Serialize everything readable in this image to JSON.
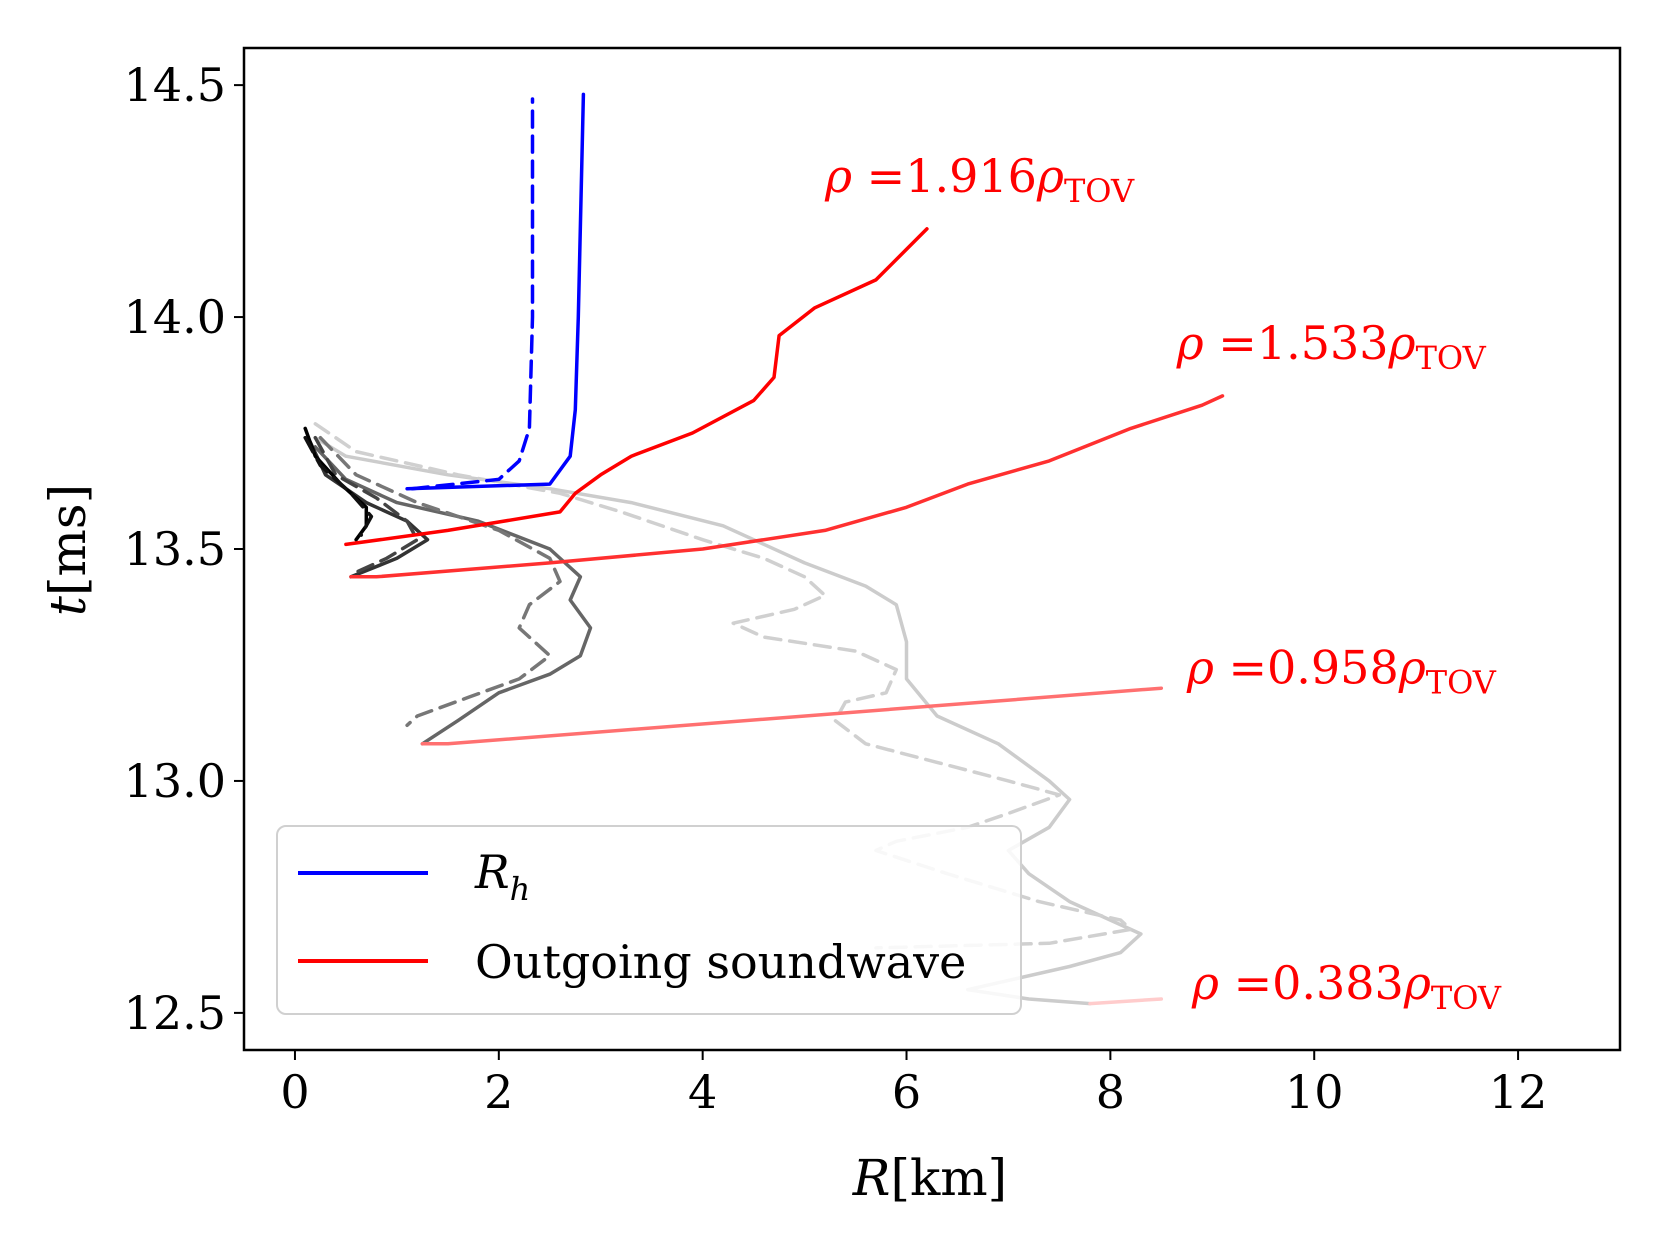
{
  "chart_data": {
    "type": "line",
    "title": "",
    "xlabel": {
      "var": "R",
      "unit": "[km]"
    },
    "ylabel": {
      "var": "t",
      "unit": "[ms]"
    },
    "xlim": [
      -0.5,
      13.0
    ],
    "ylim": [
      12.42,
      14.58
    ],
    "xticks": [
      0,
      2,
      4,
      6,
      8,
      10,
      12
    ],
    "xtick_labels": [
      "0",
      "2",
      "4",
      "6",
      "8",
      "10",
      "12"
    ],
    "yticks": [
      12.5,
      13.0,
      13.5,
      14.0,
      14.5
    ],
    "ytick_labels": [
      "12.5",
      "13.0",
      "13.5",
      "14.0",
      "14.5"
    ],
    "grid": false,
    "legend": {
      "position": "lower-left",
      "entries": [
        {
          "label": "R",
          "sub": "h",
          "color": "#0000ff"
        },
        {
          "label": "Outgoing soundwave",
          "color": "#ff0000"
        }
      ]
    },
    "annotations": [
      {
        "pre": "ρ =",
        "value": "1.916",
        "post": "ρ",
        "sub": "TOV",
        "x": 5.2,
        "y": 14.27
      },
      {
        "pre": "ρ =",
        "value": "1.533",
        "post": "ρ",
        "sub": "TOV",
        "x": 8.65,
        "y": 13.91
      },
      {
        "pre": "ρ =",
        "value": "0.958",
        "post": "ρ",
        "sub": "TOV",
        "x": 8.75,
        "y": 13.21
      },
      {
        "pre": "ρ =",
        "value": "0.383",
        "post": "ρ",
        "sub": "TOV",
        "x": 8.8,
        "y": 12.53
      }
    ],
    "series": [
      {
        "name": "contour-0.383-solid",
        "color": "#cccccc",
        "dash": false,
        "points": [
          [
            0.2,
            13.74
          ],
          [
            0.5,
            13.7
          ],
          [
            1.5,
            13.66
          ],
          [
            2.5,
            13.63
          ],
          [
            3.3,
            13.6
          ],
          [
            4.2,
            13.55
          ],
          [
            5.0,
            13.47
          ],
          [
            5.6,
            13.42
          ],
          [
            5.9,
            13.38
          ],
          [
            6.0,
            13.3
          ],
          [
            6.0,
            13.22
          ],
          [
            6.3,
            13.14
          ],
          [
            6.9,
            13.08
          ],
          [
            7.4,
            13.0
          ],
          [
            7.6,
            12.96
          ],
          [
            7.4,
            12.9
          ],
          [
            7.0,
            12.85
          ],
          [
            7.2,
            12.8
          ],
          [
            7.6,
            12.74
          ],
          [
            8.0,
            12.7
          ],
          [
            8.3,
            12.67
          ],
          [
            8.1,
            12.63
          ],
          [
            7.6,
            12.6
          ],
          [
            7.0,
            12.57
          ],
          [
            6.6,
            12.55
          ],
          [
            7.2,
            12.53
          ],
          [
            7.8,
            12.52
          ]
        ]
      },
      {
        "name": "contour-0.383-dashed",
        "color": "#d0d0d0",
        "dash": true,
        "points": [
          [
            0.2,
            13.77
          ],
          [
            0.6,
            13.71
          ],
          [
            1.6,
            13.66
          ],
          [
            2.6,
            13.62
          ],
          [
            3.2,
            13.58
          ],
          [
            4.0,
            13.52
          ],
          [
            4.6,
            13.48
          ],
          [
            5.0,
            13.44
          ],
          [
            5.2,
            13.4
          ],
          [
            4.9,
            13.37
          ],
          [
            4.3,
            13.34
          ],
          [
            4.6,
            13.31
          ],
          [
            5.5,
            13.28
          ],
          [
            5.9,
            13.24
          ],
          [
            5.8,
            13.19
          ],
          [
            5.4,
            13.17
          ],
          [
            5.3,
            13.13
          ],
          [
            5.6,
            13.08
          ],
          [
            6.3,
            13.04
          ],
          [
            7.0,
            13.0
          ],
          [
            7.5,
            12.97
          ],
          [
            7.0,
            12.93
          ],
          [
            6.6,
            12.9
          ],
          [
            5.9,
            12.87
          ],
          [
            5.7,
            12.85
          ],
          [
            6.4,
            12.8
          ],
          [
            7.3,
            12.74
          ],
          [
            8.1,
            12.7
          ],
          [
            8.2,
            12.68
          ],
          [
            7.4,
            12.65
          ],
          [
            5.7,
            12.64
          ]
        ]
      },
      {
        "name": "contour-0.958-solid",
        "color": "#666666",
        "dash": false,
        "points": [
          [
            0.2,
            13.72
          ],
          [
            0.5,
            13.65
          ],
          [
            1.0,
            13.6
          ],
          [
            1.8,
            13.56
          ],
          [
            2.5,
            13.5
          ],
          [
            2.8,
            13.44
          ],
          [
            2.7,
            13.39
          ],
          [
            2.9,
            13.33
          ],
          [
            2.8,
            13.27
          ],
          [
            2.5,
            13.23
          ],
          [
            2.0,
            13.19
          ],
          [
            1.6,
            13.13
          ],
          [
            1.25,
            13.08
          ]
        ]
      },
      {
        "name": "contour-0.958-dashed",
        "color": "#777777",
        "dash": true,
        "points": [
          [
            0.25,
            13.74
          ],
          [
            0.6,
            13.66
          ],
          [
            1.2,
            13.6
          ],
          [
            2.0,
            13.54
          ],
          [
            2.5,
            13.48
          ],
          [
            2.6,
            13.43
          ],
          [
            2.3,
            13.38
          ],
          [
            2.2,
            13.33
          ],
          [
            2.5,
            13.27
          ],
          [
            2.2,
            13.22
          ],
          [
            1.7,
            13.18
          ],
          [
            1.2,
            13.14
          ],
          [
            1.1,
            13.12
          ]
        ]
      },
      {
        "name": "contour-1.533-solid",
        "color": "#333333",
        "dash": false,
        "points": [
          [
            0.15,
            13.73
          ],
          [
            0.3,
            13.66
          ],
          [
            0.7,
            13.6
          ],
          [
            1.1,
            13.56
          ],
          [
            1.3,
            13.52
          ],
          [
            1.0,
            13.48
          ],
          [
            0.55,
            13.44
          ]
        ]
      },
      {
        "name": "contour-1.533-dashed",
        "color": "#444444",
        "dash": true,
        "points": [
          [
            0.2,
            13.74
          ],
          [
            0.4,
            13.66
          ],
          [
            0.8,
            13.61
          ],
          [
            1.1,
            13.56
          ],
          [
            1.2,
            13.52
          ],
          [
            0.9,
            13.48
          ],
          [
            0.6,
            13.45
          ]
        ]
      },
      {
        "name": "contour-1.916-solid",
        "color": "#000000",
        "dash": false,
        "points": [
          [
            0.1,
            13.76
          ],
          [
            0.2,
            13.7
          ],
          [
            0.45,
            13.64
          ],
          [
            0.7,
            13.59
          ],
          [
            0.7,
            13.55
          ],
          [
            0.6,
            13.52
          ]
        ]
      },
      {
        "name": "contour-1.916-dashed",
        "color": "#111111",
        "dash": true,
        "points": [
          [
            0.1,
            13.74
          ],
          [
            0.25,
            13.68
          ],
          [
            0.55,
            13.62
          ],
          [
            0.75,
            13.57
          ],
          [
            0.65,
            13.53
          ]
        ]
      },
      {
        "name": "soundwave-0.383",
        "color": "#ffcccc",
        "dash": false,
        "points": [
          [
            7.8,
            12.52
          ],
          [
            8.5,
            12.53
          ]
        ]
      },
      {
        "name": "soundwave-0.958",
        "color": "#ff7070",
        "dash": false,
        "points": [
          [
            1.25,
            13.08
          ],
          [
            1.5,
            13.08
          ],
          [
            8.5,
            13.2
          ]
        ]
      },
      {
        "name": "soundwave-1.533",
        "color": "#ff3030",
        "dash": false,
        "points": [
          [
            0.55,
            13.44
          ],
          [
            0.8,
            13.44
          ],
          [
            2.5,
            13.47
          ],
          [
            4.0,
            13.5
          ],
          [
            5.2,
            13.54
          ],
          [
            6.0,
            13.59
          ],
          [
            6.6,
            13.64
          ],
          [
            7.4,
            13.69
          ],
          [
            8.2,
            13.76
          ],
          [
            8.9,
            13.81
          ],
          [
            9.1,
            13.83
          ]
        ]
      },
      {
        "name": "soundwave-1.916",
        "color": "#ff0000",
        "dash": false,
        "points": [
          [
            0.5,
            13.51
          ],
          [
            1.5,
            13.54
          ],
          [
            2.6,
            13.58
          ],
          [
            2.75,
            13.62
          ],
          [
            3.0,
            13.66
          ],
          [
            3.3,
            13.7
          ],
          [
            3.9,
            13.75
          ],
          [
            4.5,
            13.82
          ],
          [
            4.7,
            13.87
          ],
          [
            4.75,
            13.96
          ],
          [
            5.1,
            14.02
          ],
          [
            5.7,
            14.08
          ],
          [
            6.2,
            14.19
          ]
        ]
      },
      {
        "name": "horizon-dashed",
        "color": "#0000ff",
        "dash": true,
        "points": [
          [
            1.15,
            13.63
          ],
          [
            2.0,
            13.65
          ],
          [
            2.2,
            13.69
          ],
          [
            2.3,
            13.76
          ],
          [
            2.33,
            14.0
          ],
          [
            2.33,
            14.47
          ]
        ]
      },
      {
        "name": "horizon-solid",
        "color": "#0000ff",
        "dash": false,
        "points": [
          [
            1.1,
            13.63
          ],
          [
            2.5,
            13.64
          ],
          [
            2.7,
            13.7
          ],
          [
            2.75,
            13.8
          ],
          [
            2.78,
            14.0
          ],
          [
            2.83,
            14.48
          ]
        ]
      }
    ]
  }
}
